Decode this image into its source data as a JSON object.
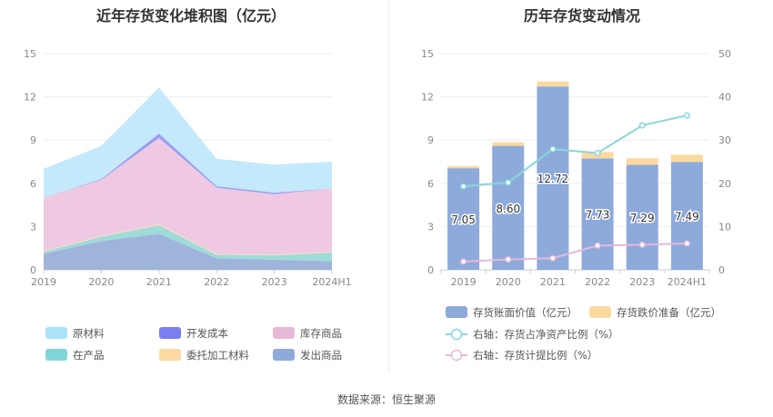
{
  "source": "数据来源：恒生聚源",
  "chart_data": [
    {
      "type": "area",
      "stacked": true,
      "title": "近年存货变化堆积图（亿元）",
      "x": [
        "2019",
        "2020",
        "2021",
        "2022",
        "2023",
        "2024H1"
      ],
      "ylim": [
        0,
        15
      ],
      "yticks": [
        0,
        3,
        6,
        9,
        12,
        15
      ],
      "legend_position": "bottom",
      "series": [
        {
          "name": "发出商品",
          "color": "#9fb4da",
          "values": [
            1.1,
            2.0,
            2.5,
            0.8,
            0.7,
            0.6
          ]
        },
        {
          "name": "在产品",
          "color": "#9edbd9",
          "values": [
            0.15,
            0.3,
            0.6,
            0.25,
            0.3,
            0.6
          ]
        },
        {
          "name": "委托加工材料",
          "color": "#fde0ae",
          "values": [
            0.05,
            0.05,
            0.05,
            0.05,
            0.05,
            0.05
          ]
        },
        {
          "name": "库存商品",
          "color": "#efc8e2",
          "values": [
            3.7,
            3.9,
            6.0,
            4.6,
            4.2,
            4.4
          ]
        },
        {
          "name": "开发成本",
          "color": "#9a9df2",
          "values": [
            0.0,
            0.05,
            0.3,
            0.1,
            0.1,
            0.0
          ]
        },
        {
          "name": "原材料",
          "color": "#c3e9fb",
          "values": [
            2.0,
            2.3,
            3.2,
            1.9,
            1.95,
            1.85
          ]
        }
      ],
      "legend": [
        {
          "name": "原材料",
          "color": "#a9e3fa"
        },
        {
          "name": "开发成本",
          "color": "#7b7ef0"
        },
        {
          "name": "库存商品",
          "color": "#e6b9d9"
        },
        {
          "name": "在产品",
          "color": "#7fd6d6"
        },
        {
          "name": "委托加工材料",
          "color": "#fcd9a0"
        },
        {
          "name": "发出商品",
          "color": "#8eaadb"
        }
      ]
    },
    {
      "type": "bar",
      "title": "历年存货变动情况",
      "categories": [
        "2019",
        "2020",
        "2021",
        "2022",
        "2023",
        "2024H1"
      ],
      "ylim": [
        0,
        15
      ],
      "yticks": [
        0,
        3,
        6,
        9,
        12,
        15
      ],
      "y2lim": [
        0,
        50
      ],
      "y2ticks": [
        0,
        10,
        20,
        30,
        40,
        50
      ],
      "legend_position": "bottom",
      "series": [
        {
          "name": "存货账面价值（亿元）",
          "color": "#8eaadb",
          "values": [
            7.05,
            8.6,
            12.72,
            7.73,
            7.29,
            7.49
          ],
          "labels": [
            "7.05",
            "8.60",
            "12.72",
            "7.73",
            "7.29",
            "7.49"
          ]
        },
        {
          "name": "存货跌价准备（亿元）",
          "color": "#fcd9a0",
          "values": [
            0.15,
            0.25,
            0.35,
            0.45,
            0.45,
            0.5
          ]
        },
        {
          "name": "右轴：存货占净资产比例（%）",
          "color": "#86d7d9",
          "axis": "right",
          "values": [
            19.3,
            20.2,
            27.9,
            27.0,
            33.4,
            35.7
          ]
        },
        {
          "name": "右轴：存货计提比例（%）",
          "color": "#e6b9d9",
          "axis": "right",
          "values": [
            1.9,
            2.4,
            2.7,
            5.6,
            5.8,
            6.1
          ]
        }
      ]
    }
  ]
}
